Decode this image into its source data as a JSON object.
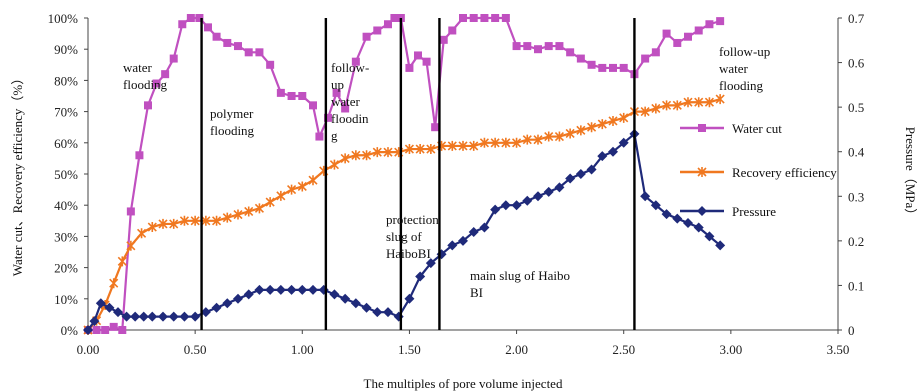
{
  "chart_data": {
    "type": "line",
    "title": "",
    "xlabel": "The multiples of pore volume injected",
    "ylabel_left": "Water cut、Recovery efficiency（%）",
    "ylabel_right": "Pressure（MPa）",
    "xlim": [
      0,
      3.5
    ],
    "ylim_left": [
      0,
      100
    ],
    "ylim_right": [
      0,
      0.7
    ],
    "x_ticks": [
      "0.00",
      "0.50",
      "1.00",
      "1.50",
      "2.00",
      "2.50",
      "3.00",
      "3.50"
    ],
    "y_left_ticks": [
      "0%",
      "10%",
      "20%",
      "30%",
      "40%",
      "50%",
      "60%",
      "70%",
      "80%",
      "90%",
      "100%"
    ],
    "y_right_ticks": [
      "0",
      "0.1",
      "0.2",
      "0.3",
      "0.4",
      "0.5",
      "0.6",
      "0.7"
    ],
    "grid": false,
    "legend_position": "right",
    "stage_lines_x": [
      0.53,
      1.11,
      1.46,
      1.64,
      2.55
    ],
    "annotations": [
      {
        "lines": [
          "water",
          "flooding"
        ]
      },
      {
        "lines": [
          "polymer",
          "flooding"
        ]
      },
      {
        "lines": [
          "follow-",
          "up",
          "water",
          "floodin",
          "g"
        ]
      },
      {
        "lines": [
          "protection",
          "slug of",
          "HaiboBI"
        ]
      },
      {
        "lines": [
          "main slug of Haibo",
          "BI"
        ]
      },
      {
        "lines": [
          "follow-up",
          "water",
          "flooding"
        ]
      }
    ],
    "series": [
      {
        "name": "Water cut",
        "axis": "left",
        "color": "#c050c0",
        "marker": "square",
        "x": [
          0,
          0.04,
          0.08,
          0.12,
          0.16,
          0.2,
          0.24,
          0.28,
          0.32,
          0.36,
          0.4,
          0.44,
          0.48,
          0.52,
          0.56,
          0.6,
          0.65,
          0.7,
          0.75,
          0.8,
          0.85,
          0.9,
          0.95,
          1.0,
          1.05,
          1.08,
          1.12,
          1.16,
          1.2,
          1.25,
          1.3,
          1.35,
          1.4,
          1.43,
          1.46,
          1.5,
          1.54,
          1.58,
          1.62,
          1.66,
          1.7,
          1.75,
          1.8,
          1.85,
          1.9,
          1.95,
          2.0,
          2.05,
          2.1,
          2.15,
          2.2,
          2.25,
          2.3,
          2.35,
          2.4,
          2.45,
          2.5,
          2.55,
          2.6,
          2.65,
          2.7,
          2.75,
          2.8,
          2.85,
          2.9,
          2.95
        ],
        "values": [
          0,
          0,
          0,
          1,
          0,
          38,
          56,
          72,
          79,
          82,
          87,
          98,
          100,
          100,
          97,
          94,
          92,
          91,
          89,
          89,
          85,
          76,
          75,
          75,
          72,
          62,
          68,
          76,
          71,
          86,
          94,
          96,
          98,
          100,
          100,
          84,
          88,
          86,
          65,
          93,
          96,
          100,
          100,
          100,
          100,
          100,
          91,
          91,
          90,
          91,
          91,
          89,
          87,
          85,
          84,
          84,
          84,
          82,
          87,
          89,
          95,
          92,
          94,
          96,
          98,
          99
        ]
      },
      {
        "name": "Recovery efficiency",
        "axis": "left",
        "color": "#f07820",
        "marker": "star",
        "x": [
          0,
          0.04,
          0.08,
          0.12,
          0.16,
          0.2,
          0.25,
          0.3,
          0.35,
          0.4,
          0.45,
          0.5,
          0.55,
          0.6,
          0.65,
          0.7,
          0.75,
          0.8,
          0.85,
          0.9,
          0.95,
          1.0,
          1.05,
          1.1,
          1.15,
          1.2,
          1.25,
          1.3,
          1.35,
          1.4,
          1.45,
          1.5,
          1.55,
          1.6,
          1.65,
          1.7,
          1.75,
          1.8,
          1.85,
          1.9,
          1.95,
          2.0,
          2.05,
          2.1,
          2.15,
          2.2,
          2.25,
          2.3,
          2.35,
          2.4,
          2.45,
          2.5,
          2.55,
          2.6,
          2.65,
          2.7,
          2.75,
          2.8,
          2.85,
          2.9,
          2.95
        ],
        "values": [
          0,
          3,
          8,
          15,
          22,
          27,
          31,
          33,
          34,
          34,
          35,
          35,
          35,
          35,
          36,
          37,
          38,
          39,
          41,
          43,
          45,
          46,
          48,
          51,
          53,
          55,
          56,
          56,
          57,
          57,
          57,
          58,
          58,
          58,
          59,
          59,
          59,
          59,
          60,
          60,
          60,
          60,
          61,
          61,
          62,
          62,
          63,
          64,
          65,
          66,
          67,
          68,
          70,
          70,
          71,
          72,
          72,
          73,
          73,
          73,
          74
        ]
      },
      {
        "name": "Pressure",
        "axis": "right",
        "color": "#1f2a7a",
        "marker": "diamond",
        "x": [
          0,
          0.03,
          0.06,
          0.1,
          0.14,
          0.18,
          0.22,
          0.26,
          0.3,
          0.35,
          0.4,
          0.45,
          0.5,
          0.55,
          0.6,
          0.65,
          0.7,
          0.75,
          0.8,
          0.85,
          0.9,
          0.95,
          1.0,
          1.05,
          1.1,
          1.15,
          1.2,
          1.25,
          1.3,
          1.35,
          1.4,
          1.45,
          1.5,
          1.55,
          1.6,
          1.65,
          1.7,
          1.75,
          1.8,
          1.85,
          1.9,
          1.95,
          2.0,
          2.05,
          2.1,
          2.15,
          2.2,
          2.25,
          2.3,
          2.35,
          2.4,
          2.45,
          2.5,
          2.55,
          2.6,
          2.65,
          2.7,
          2.75,
          2.8,
          2.85,
          2.9,
          2.95
        ],
        "values": [
          0,
          0.02,
          0.06,
          0.05,
          0.04,
          0.03,
          0.03,
          0.03,
          0.03,
          0.03,
          0.03,
          0.03,
          0.03,
          0.04,
          0.05,
          0.06,
          0.07,
          0.08,
          0.09,
          0.09,
          0.09,
          0.09,
          0.09,
          0.09,
          0.09,
          0.08,
          0.07,
          0.06,
          0.05,
          0.04,
          0.04,
          0.03,
          0.07,
          0.12,
          0.15,
          0.17,
          0.19,
          0.2,
          0.22,
          0.23,
          0.27,
          0.28,
          0.28,
          0.29,
          0.3,
          0.31,
          0.32,
          0.34,
          0.35,
          0.36,
          0.39,
          0.4,
          0.42,
          0.44,
          0.3,
          0.28,
          0.26,
          0.25,
          0.24,
          0.23,
          0.21,
          0.19
        ]
      }
    ]
  }
}
